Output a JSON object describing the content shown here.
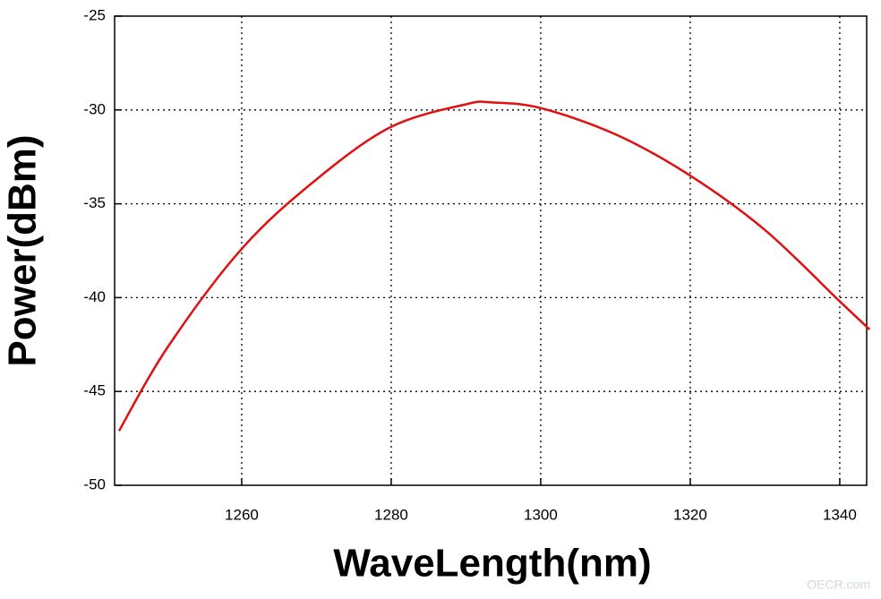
{
  "chart_data": {
    "type": "line",
    "xlabel": "WaveLength(nm)",
    "ylabel": "Power(dBm)",
    "watermark": "OECR.com",
    "x": [
      1243.6,
      1250,
      1260,
      1270,
      1280,
      1290,
      1293.4,
      1300,
      1310,
      1320,
      1330,
      1340,
      1344
    ],
    "series": [
      {
        "color": "#e01010",
        "values": [
          -47.1,
          -42.7,
          -37.4,
          -33.7,
          -30.9,
          -29.7,
          -29.6,
          -29.9,
          -31.3,
          -33.5,
          -36.4,
          -40.2,
          -41.7
        ]
      }
    ],
    "xlim": [
      1243,
      1343.6
    ],
    "xticks": [
      1260,
      1280,
      1300,
      1320,
      1340
    ],
    "ylim": [
      -50,
      -25
    ],
    "yticks": [
      -50,
      -45,
      -40,
      -35,
      -30,
      -25
    ],
    "grid": true
  }
}
